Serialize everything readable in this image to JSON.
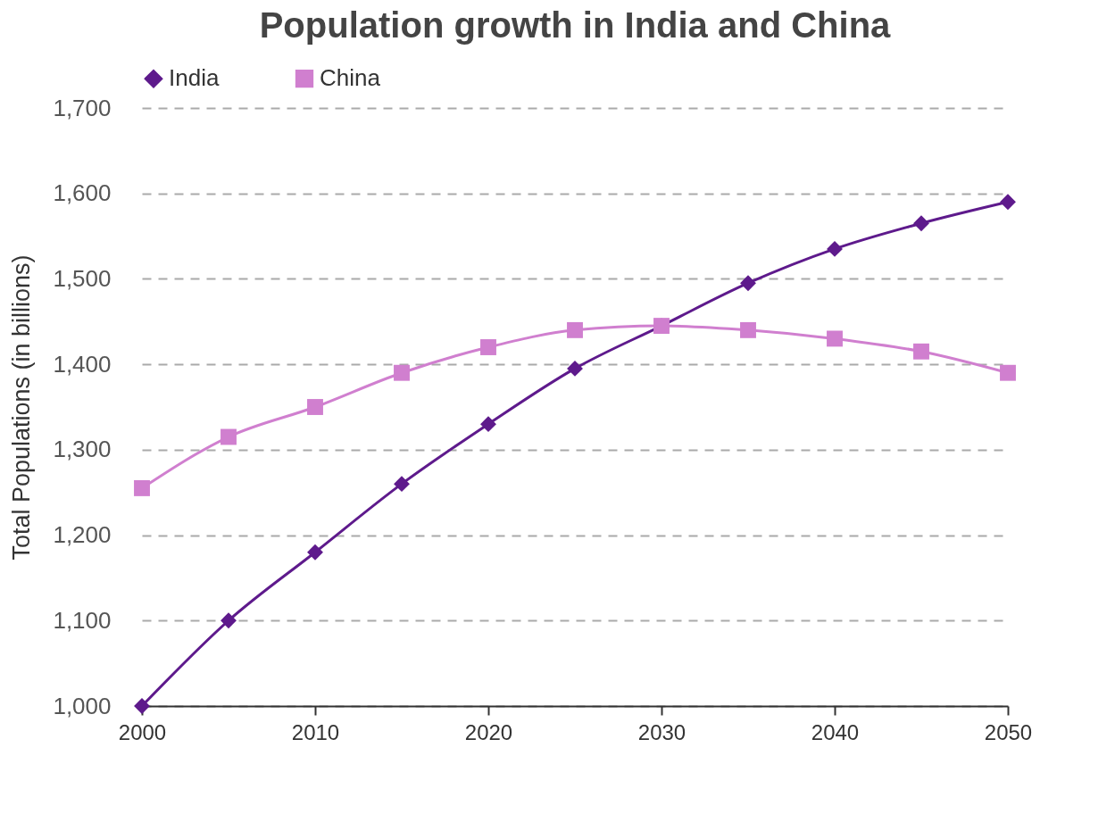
{
  "chart_data": {
    "type": "line",
    "title": "Population growth in India and China",
    "ylabel": "Total Populations (in billions)",
    "x": [
      2000,
      2005,
      2010,
      2015,
      2020,
      2025,
      2030,
      2035,
      2040,
      2045,
      2050
    ],
    "series": [
      {
        "name": "India",
        "color": "#5e1a8c",
        "marker": "diamond",
        "values": [
          1000,
          1100,
          1180,
          1260,
          1330,
          1395,
          1445,
          1495,
          1535,
          1565,
          1590
        ]
      },
      {
        "name": "China",
        "color": "#d07fcf",
        "marker": "square",
        "values": [
          1255,
          1315,
          1350,
          1390,
          1420,
          1440,
          1445,
          1440,
          1430,
          1415,
          1390
        ]
      }
    ],
    "xlim": [
      2000,
      2050
    ],
    "xticks": [
      2000,
      2010,
      2020,
      2030,
      2040,
      2050
    ],
    "ylim": [
      1000,
      1700
    ],
    "yticks": [
      {
        "value": 1000,
        "label": "1,000"
      },
      {
        "value": 1100,
        "label": "1,100"
      },
      {
        "value": 1200,
        "label": "1,200"
      },
      {
        "value": 1300,
        "label": "1,300"
      },
      {
        "value": 1400,
        "label": "1,400"
      },
      {
        "value": 1500,
        "label": "1,500"
      },
      {
        "value": 1600,
        "label": "1,600"
      },
      {
        "value": 1700,
        "label": "1,700"
      }
    ],
    "grid": "y",
    "legend": "top",
    "line_style": "solid"
  }
}
